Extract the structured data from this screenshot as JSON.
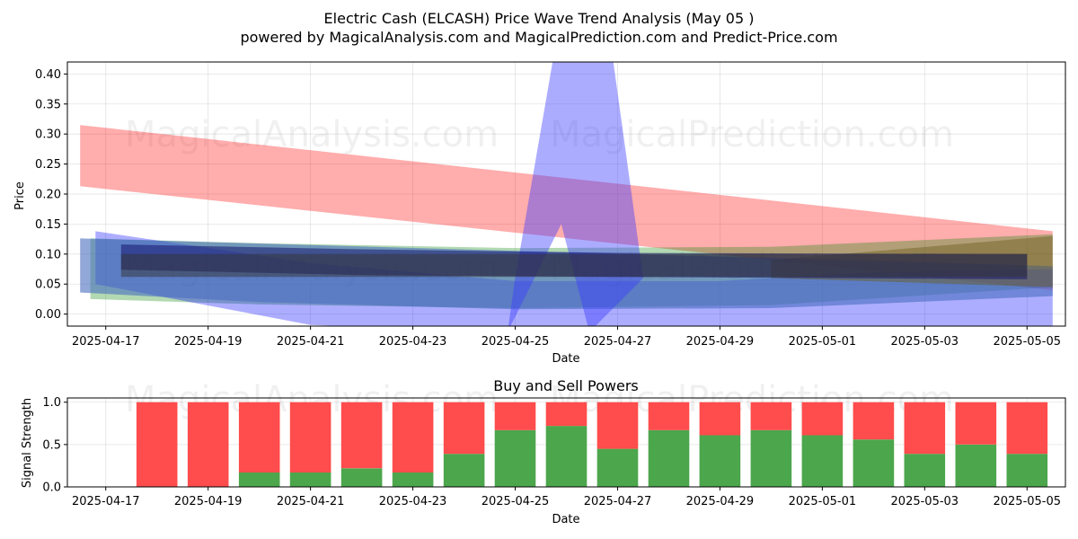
{
  "title_line1": "Electric Cash (ELCASH) Price Wave Trend Analysis (May 05 )",
  "title_line2": "powered by MagicalAnalysis.com and MagicalPrediction.com and Predict-Price.com",
  "watermarks": [
    "MagicalAnalysis.com",
    "MagicalPrediction.com"
  ],
  "chart_data": [
    {
      "type": "area",
      "title": "",
      "xlabel": "Date",
      "ylabel": "Price",
      "ylim": [
        -0.02,
        0.42
      ],
      "xlim_days": [
        -0.75,
        18.75
      ],
      "x_start_date": "2025-04-17",
      "y_ticks": [
        "0.00",
        "0.05",
        "0.10",
        "0.15",
        "0.20",
        "0.25",
        "0.30",
        "0.35",
        "0.40"
      ],
      "y_tick_values": [
        0,
        0.05,
        0.1,
        0.15,
        0.2,
        0.25,
        0.3,
        0.35,
        0.4
      ],
      "x_ticks": [
        "2025-04-17",
        "2025-04-19",
        "2025-04-21",
        "2025-04-23",
        "2025-04-25",
        "2025-04-27",
        "2025-04-29",
        "2025-05-01",
        "2025-05-03",
        "2025-05-05"
      ],
      "x_tick_days": [
        0,
        2,
        4,
        6,
        8,
        10,
        12,
        14,
        16,
        18
      ],
      "grid": true,
      "bands": [
        {
          "name": "red-trend-band",
          "color": "#ff0000",
          "opacity": 0.32,
          "upper": [
            [
              -0.5,
              0.315
            ],
            [
              18.5,
              0.138
            ]
          ],
          "lower": [
            [
              -0.5,
              0.213
            ],
            [
              18.5,
              0.04
            ]
          ]
        },
        {
          "name": "green-trend-band",
          "color": "#008000",
          "opacity": 0.3,
          "upper": [
            [
              -0.3,
              0.126
            ],
            [
              3,
              0.118
            ],
            [
              8,
              0.11
            ],
            [
              13,
              0.112
            ],
            [
              18.5,
              0.133
            ]
          ],
          "lower": [
            [
              -0.3,
              0.025
            ],
            [
              3,
              0.016
            ],
            [
              8,
              0.01
            ],
            [
              13,
              0.015
            ],
            [
              18.5,
              0.045
            ]
          ]
        },
        {
          "name": "blue-wide-band",
          "color": "#0000ff",
          "opacity": 0.32,
          "upper": [
            [
              -0.2,
              0.138
            ],
            [
              4,
              0.085
            ],
            [
              8,
              0.055
            ],
            [
              12,
              0.055
            ],
            [
              15,
              0.07
            ],
            [
              18.5,
              0.075
            ]
          ],
          "lower": [
            [
              -0.2,
              0.05
            ],
            [
              4,
              -0.018
            ],
            [
              8,
              -0.03
            ],
            [
              12,
              -0.03
            ],
            [
              15,
              -0.02
            ],
            [
              18.5,
              -0.02
            ]
          ]
        },
        {
          "name": "blue-steel-band",
          "color": "#4a6ec0",
          "opacity": 0.6,
          "upper": [
            [
              -0.5,
              0.126
            ],
            [
              18.5,
              0.08
            ]
          ],
          "lower": [
            [
              -0.5,
              0.036
            ],
            [
              3,
              0.02
            ],
            [
              8,
              0.008
            ],
            [
              13,
              0.01
            ],
            [
              18.5,
              0.03
            ]
          ]
        },
        {
          "name": "purple-spike-band",
          "color": "#3a3aff",
          "opacity": 0.42,
          "upper": [
            [
              8.0,
              0.06
            ],
            [
              8.75,
              0.43
            ],
            [
              9.9,
              0.43
            ],
            [
              10.5,
              0.06
            ]
          ],
          "lower": [
            [
              7.85,
              -0.03
            ],
            [
              8.9,
              0.15
            ],
            [
              9.45,
              -0.03
            ]
          ]
        },
        {
          "name": "olive-band",
          "color": "#6b5a1a",
          "opacity": 0.45,
          "upper": [
            [
              13,
              0.09
            ],
            [
              18.5,
              0.13
            ]
          ],
          "lower": [
            [
              13,
              0.06
            ],
            [
              18.5,
              0.045
            ]
          ]
        },
        {
          "name": "dark-navy-band",
          "color": "#16166e",
          "opacity": 0.55,
          "upper": [
            [
              0.3,
              0.116
            ],
            [
              5,
              0.108
            ],
            [
              10,
              0.102
            ],
            [
              18,
              0.1
            ]
          ],
          "lower": [
            [
              0.3,
              0.074
            ],
            [
              5,
              0.065
            ],
            [
              10,
              0.062
            ],
            [
              18,
              0.058
            ]
          ]
        },
        {
          "name": "dark-gray-band",
          "color": "#333333",
          "opacity": 0.5,
          "upper": [
            [
              0.3,
              0.1
            ],
            [
              18,
              0.1
            ]
          ],
          "lower": [
            [
              0.3,
              0.062
            ],
            [
              18,
              0.062
            ]
          ]
        }
      ]
    },
    {
      "type": "bar",
      "title": "Buy and Sell Powers",
      "xlabel": "Date",
      "ylabel": "Signal Strength",
      "ylim": [
        0,
        1.05
      ],
      "xlim_days": [
        -0.75,
        18.75
      ],
      "y_ticks": [
        "0.0",
        "0.5",
        "1.0"
      ],
      "y_tick_values": [
        0,
        0.5,
        1.0
      ],
      "x_ticks": [
        "2025-04-17",
        "2025-04-19",
        "2025-04-21",
        "2025-04-23",
        "2025-04-25",
        "2025-04-27",
        "2025-04-29",
        "2025-05-01",
        "2025-05-03",
        "2025-05-05"
      ],
      "x_tick_days": [
        0,
        2,
        4,
        6,
        8,
        10,
        12,
        14,
        16,
        18
      ],
      "grid": true,
      "buy_color": "#4ca64c",
      "sell_color": "#ff4c4c",
      "days": [
        1,
        2,
        3,
        4,
        5,
        6,
        7,
        8,
        9,
        10,
        11,
        12,
        13,
        14,
        15,
        16,
        17,
        18
      ],
      "buy": [
        0,
        0,
        0.17,
        0.17,
        0.22,
        0.17,
        0.39,
        0.67,
        0.72,
        0.45,
        0.67,
        0.61,
        0.67,
        0.61,
        0.56,
        0.39,
        0.5,
        0.39
      ],
      "sell_top": 1.0
    }
  ]
}
